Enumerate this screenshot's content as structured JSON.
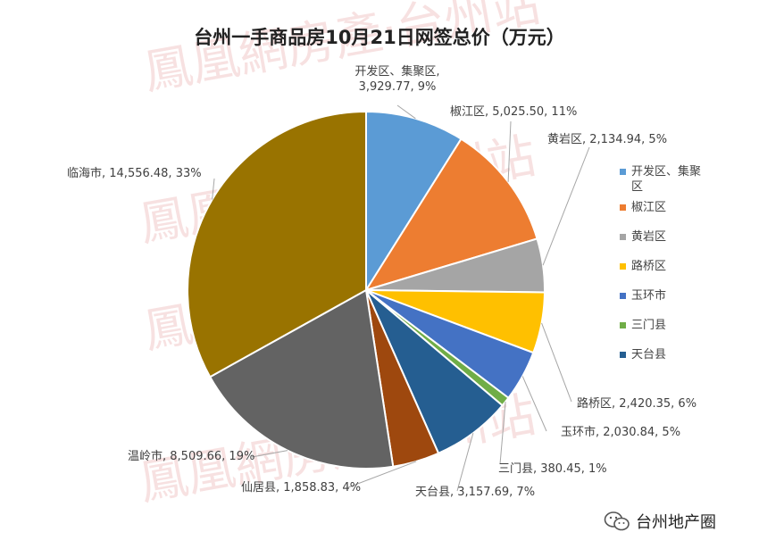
{
  "watermark": {
    "text": "鳳凰網房產·台州站"
  },
  "footer": {
    "account": "台州地产圈",
    "icon": "wechat-icon"
  },
  "chart_data": {
    "type": "pie",
    "title": "台州一手商品房10月21日网签总价（万元）",
    "legend_position": "right",
    "slices": [
      {
        "name": "开发区、集聚区",
        "value": 3929.77,
        "percent": "9%",
        "value_label": "3,929.77",
        "color": "#5b9bd5"
      },
      {
        "name": "椒江区",
        "value": 5025.5,
        "percent": "11%",
        "value_label": "5,025.50",
        "color": "#ed7d31"
      },
      {
        "name": "黄岩区",
        "value": 2134.94,
        "percent": "5%",
        "value_label": "2,134.94",
        "color": "#a5a5a5"
      },
      {
        "name": "路桥区",
        "value": 2420.35,
        "percent": "6%",
        "value_label": "2,420.35",
        "color": "#ffc000"
      },
      {
        "name": "玉环市",
        "value": 2030.84,
        "percent": "5%",
        "value_label": "2,030.84",
        "color": "#4472c4"
      },
      {
        "name": "三门县",
        "value": 380.45,
        "percent": "1%",
        "value_label": "380.45",
        "color": "#70ad47"
      },
      {
        "name": "天台县",
        "value": 3157.69,
        "percent": "7%",
        "value_label": "3,157.69",
        "color": "#255e91"
      },
      {
        "name": "仙居县",
        "value": 1858.83,
        "percent": "4%",
        "value_label": "1,858.83",
        "color": "#9e480e"
      },
      {
        "name": "温岭市",
        "value": 8509.66,
        "percent": "19%",
        "value_label": "8,509.66",
        "color": "#636363"
      },
      {
        "name": "临海市",
        "value": 14556.48,
        "percent": "33%",
        "value_label": "14,556.48",
        "color": "#997300"
      }
    ],
    "legend_entries": [
      "开发区、集聚区",
      "椒江区",
      "黄岩区",
      "路桥区",
      "玉环市",
      "三门县",
      "天台县"
    ]
  }
}
